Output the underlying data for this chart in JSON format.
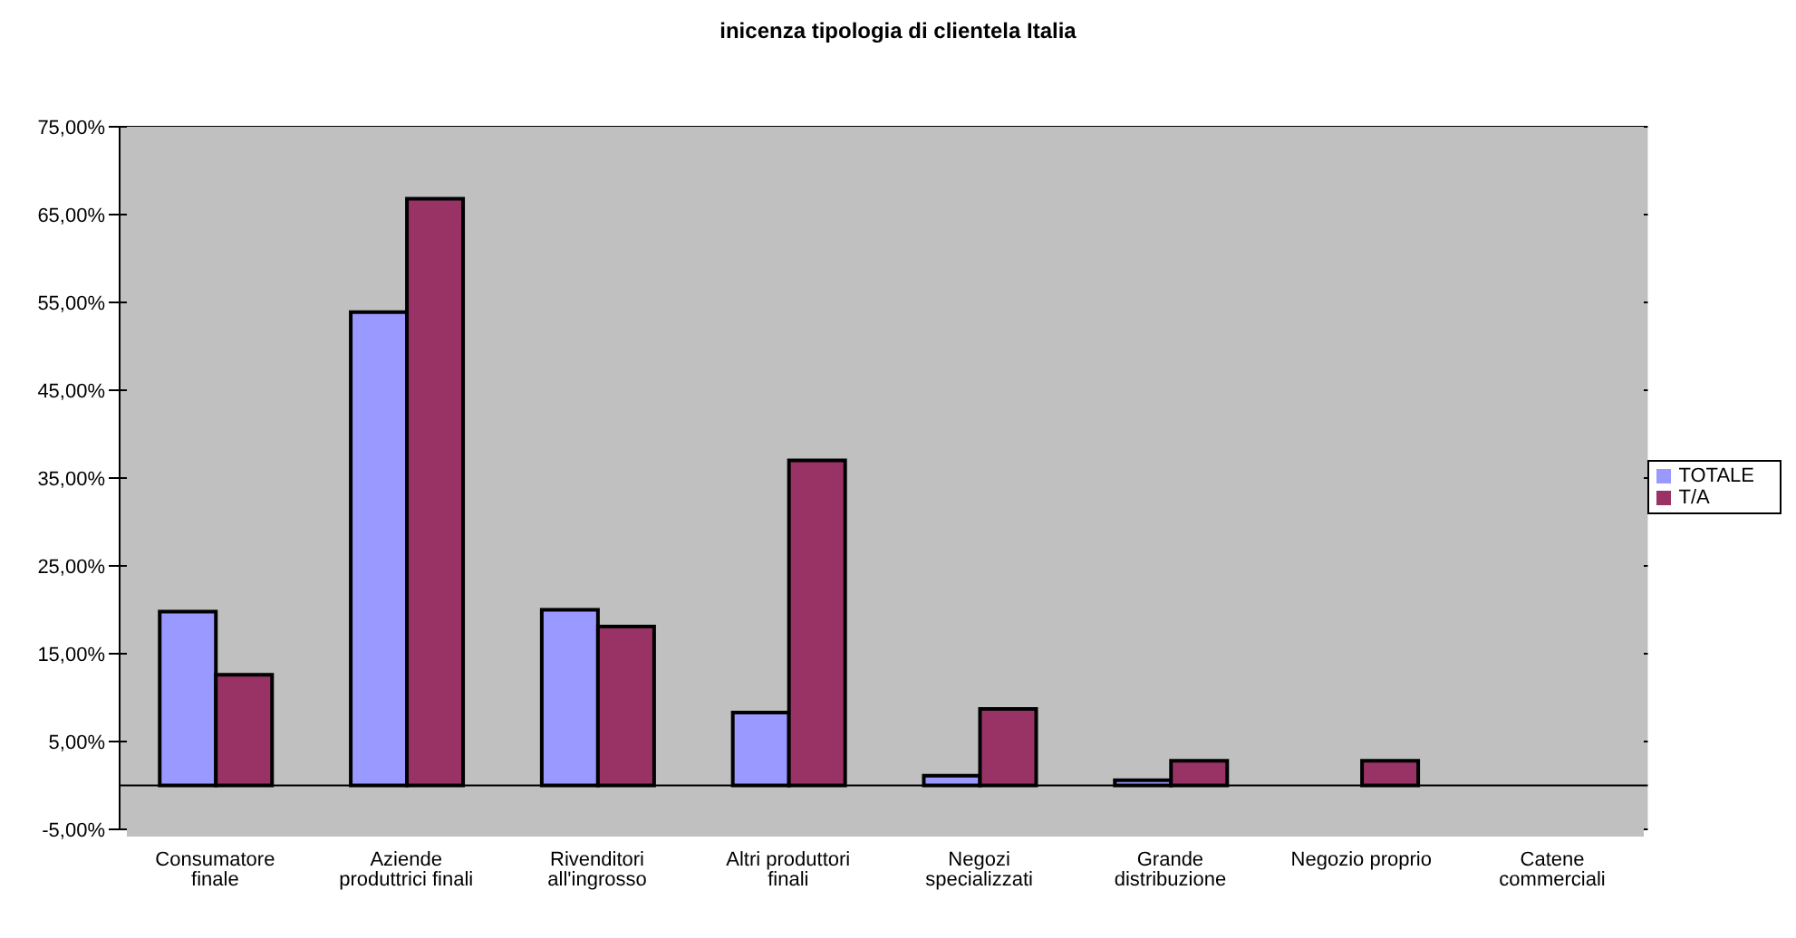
{
  "chart_data": {
    "type": "bar",
    "title": "inicenza tipologia di clientela Italia",
    "categories": [
      "Consumatore finale",
      "Aziende produttrici finali",
      "Rivenditori all'ingrosso",
      "Altri produttori finali",
      "Negozi specializzati",
      "Grande distribuzione",
      "Negozio proprio",
      "Catene commerciali"
    ],
    "series": [
      {
        "name": "TOTALE",
        "color": "#9999ff",
        "values": [
          19.8,
          53.9,
          20.0,
          8.3,
          1.1,
          0.6,
          0,
          0
        ]
      },
      {
        "name": "T/A",
        "color": "#993366",
        "values": [
          12.6,
          66.8,
          18.1,
          37.0,
          8.7,
          2.8,
          2.8,
          0
        ]
      }
    ],
    "ylim": [
      -5,
      75
    ],
    "yticks": [
      {
        "value": -5,
        "label": "-5,00%"
      },
      {
        "value": 5,
        "label": "5,00%"
      },
      {
        "value": 15,
        "label": "15,00%"
      },
      {
        "value": 25,
        "label": "25,00%"
      },
      {
        "value": 35,
        "label": "35,00%"
      },
      {
        "value": 45,
        "label": "45,00%"
      },
      {
        "value": 55,
        "label": "55,00%"
      },
      {
        "value": 65,
        "label": "65,00%"
      },
      {
        "value": 75,
        "label": "75,00%"
      }
    ],
    "grid": "y",
    "legend": "right"
  }
}
